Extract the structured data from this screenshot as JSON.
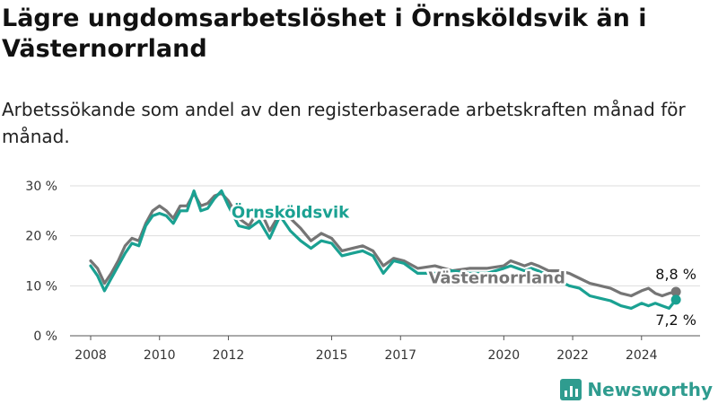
{
  "title": "Lägre ungdomsarbetslöshet i Örnsköldsvik än i Västernorrland",
  "subtitle": "Arbetssökande som andel av den registerbaserade arbetskraften månad för månad.",
  "brand": {
    "name": "Newsworthy",
    "icon": "bar-chart-icon"
  },
  "chart_data": {
    "type": "line",
    "x_ticks": [
      "2008",
      "2010",
      "2012",
      "2015",
      "2017",
      "2020",
      "2022",
      "2024"
    ],
    "y_ticks": [
      "0 %",
      "10 %",
      "20 %",
      "30 %"
    ],
    "ylim": [
      0,
      30
    ],
    "xlim": [
      2007.4,
      2025.7
    ],
    "grid": true,
    "colors": {
      "Örnsköldsvik": "#1aa192",
      "Västernorrland": "#757575"
    },
    "series": [
      {
        "name": "Västernorrland",
        "end_label": "8,8 %",
        "x": [
          2008.0,
          2008.2,
          2008.4,
          2008.6,
          2008.8,
          2009.0,
          2009.2,
          2009.4,
          2009.6,
          2009.8,
          2010.0,
          2010.2,
          2010.4,
          2010.6,
          2010.8,
          2011.0,
          2011.2,
          2011.4,
          2011.6,
          2011.8,
          2012.0,
          2012.3,
          2012.6,
          2012.9,
          2013.2,
          2013.5,
          2013.8,
          2014.1,
          2014.4,
          2014.7,
          2015.0,
          2015.3,
          2015.6,
          2015.9,
          2016.2,
          2016.5,
          2016.8,
          2017.1,
          2017.5,
          2018.0,
          2018.5,
          2019.0,
          2019.5,
          2020.0,
          2020.2,
          2020.4,
          2020.6,
          2020.8,
          2021.0,
          2021.3,
          2021.6,
          2021.9,
          2022.2,
          2022.5,
          2022.8,
          2023.1,
          2023.4,
          2023.7,
          2024.0,
          2024.2,
          2024.4,
          2024.6,
          2024.8,
          2025.0
        ],
        "values": [
          15.0,
          13.5,
          10.5,
          12.5,
          15.0,
          18.0,
          19.5,
          19.0,
          22.5,
          25.0,
          26.0,
          25.0,
          23.5,
          26.0,
          26.0,
          28.5,
          26.0,
          26.5,
          28.0,
          28.5,
          27.0,
          23.5,
          22.0,
          25.5,
          21.0,
          24.5,
          23.5,
          21.5,
          19.0,
          20.5,
          19.5,
          17.0,
          17.5,
          18.0,
          17.0,
          14.0,
          15.5,
          15.0,
          13.5,
          14.0,
          13.0,
          13.5,
          13.5,
          14.0,
          15.0,
          14.5,
          14.0,
          14.5,
          14.0,
          13.0,
          13.0,
          12.5,
          11.5,
          10.5,
          10.0,
          9.5,
          8.5,
          8.0,
          9.0,
          9.5,
          8.5,
          8.0,
          8.5,
          8.8
        ]
      },
      {
        "name": "Örnsköldsvik",
        "end_label": "7,2 %",
        "x": [
          2008.0,
          2008.2,
          2008.4,
          2008.6,
          2008.8,
          2009.0,
          2009.2,
          2009.4,
          2009.6,
          2009.8,
          2010.0,
          2010.2,
          2010.4,
          2010.6,
          2010.8,
          2011.0,
          2011.2,
          2011.4,
          2011.6,
          2011.8,
          2012.0,
          2012.3,
          2012.6,
          2012.9,
          2013.2,
          2013.5,
          2013.8,
          2014.1,
          2014.4,
          2014.7,
          2015.0,
          2015.3,
          2015.6,
          2015.9,
          2016.2,
          2016.5,
          2016.8,
          2017.1,
          2017.5,
          2018.0,
          2018.5,
          2019.0,
          2019.5,
          2020.0,
          2020.2,
          2020.4,
          2020.6,
          2020.8,
          2021.0,
          2021.3,
          2021.6,
          2021.9,
          2022.2,
          2022.5,
          2022.8,
          2023.1,
          2023.4,
          2023.7,
          2024.0,
          2024.2,
          2024.4,
          2024.6,
          2024.8,
          2025.0
        ],
        "values": [
          14.0,
          12.0,
          9.0,
          11.5,
          14.0,
          16.5,
          18.5,
          18.0,
          22.0,
          24.0,
          24.5,
          24.0,
          22.5,
          25.0,
          25.0,
          29.0,
          25.0,
          25.5,
          27.5,
          29.0,
          26.0,
          22.0,
          21.5,
          23.0,
          19.5,
          24.0,
          21.0,
          19.0,
          17.5,
          19.0,
          18.5,
          16.0,
          16.5,
          17.0,
          16.0,
          12.5,
          15.0,
          14.5,
          12.5,
          12.5,
          13.0,
          12.5,
          12.5,
          13.5,
          14.0,
          13.5,
          13.0,
          13.5,
          13.0,
          12.0,
          11.0,
          10.0,
          9.5,
          8.0,
          7.5,
          7.0,
          6.0,
          5.5,
          6.5,
          6.0,
          6.5,
          6.0,
          5.5,
          7.2
        ]
      }
    ]
  }
}
